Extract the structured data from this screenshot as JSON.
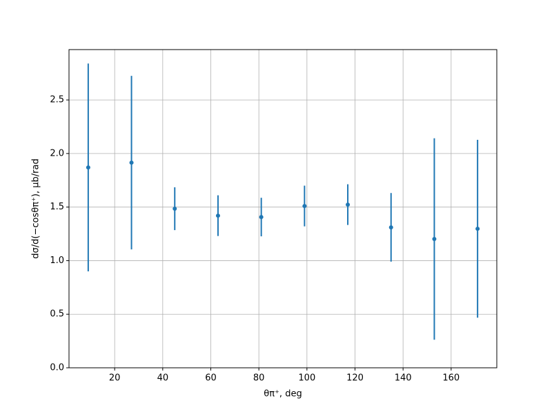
{
  "chart_data": {
    "type": "errorbar",
    "xlabel": "θπ⁺, deg",
    "ylabel": "dσ/d(−cosθπ⁺), μb/rad",
    "series": [
      {
        "color": "#1f77b4",
        "x": [
          9,
          27,
          45,
          63,
          81,
          99,
          117,
          135,
          153,
          171
        ],
        "values": [
          1.87,
          1.915,
          1.485,
          1.42,
          1.407,
          1.51,
          1.523,
          1.311,
          1.202,
          1.298
        ],
        "errors": [
          0.97,
          0.81,
          0.2,
          0.19,
          0.18,
          0.19,
          0.19,
          0.32,
          0.94,
          0.83
        ]
      }
    ],
    "xlim": [
      1,
      179
    ],
    "xticks": [
      20,
      40,
      60,
      80,
      100,
      120,
      140,
      160
    ],
    "ylim": [
      0,
      2.97
    ],
    "yticks": [
      {
        "value": 0,
        "label": "0.0"
      },
      0.5,
      {
        "value": 1,
        "label": "1.0"
      },
      1.5,
      {
        "value": 2,
        "label": "2.0"
      },
      2.5
    ],
    "grid": true
  }
}
